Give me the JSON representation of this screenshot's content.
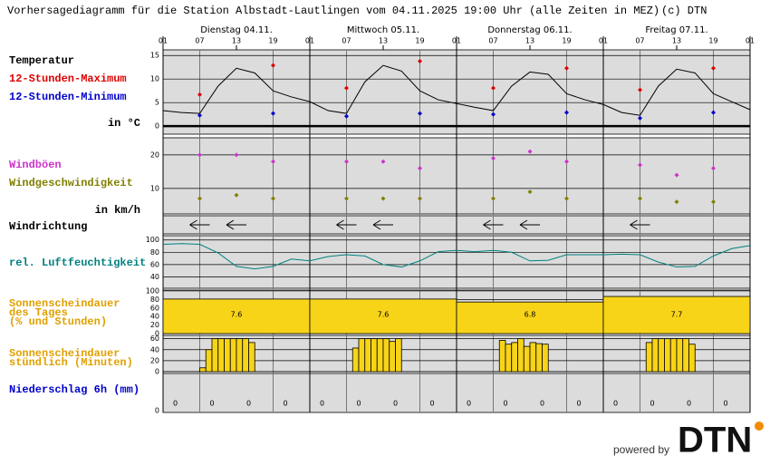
{
  "title": "Vorhersagediagramm für die Station Albstadt-Lautlingen vom 04.11.2025 19:00 Uhr (alle Zeiten in MEZ)",
  "copyright": "(c) DTN",
  "footer": {
    "powered_by": "powered by",
    "logo": "DTN"
  },
  "x_axis": {
    "days": [
      "Dienstag 04.11.",
      "Mittwoch 05.11.",
      "Donnerstag 06.11.",
      "Freitag 07.11."
    ],
    "xlim": [
      0,
      96
    ],
    "xticks": [
      {
        "value": 0,
        "label": "01"
      },
      {
        "value": 6,
        "label": "07"
      },
      {
        "value": 12,
        "label": "13"
      },
      {
        "value": 18,
        "label": "19"
      },
      {
        "value": 24,
        "label": "01"
      },
      {
        "value": 30,
        "label": "07"
      },
      {
        "value": 36,
        "label": "13"
      },
      {
        "value": 42,
        "label": "19"
      },
      {
        "value": 48,
        "label": "01"
      },
      {
        "value": 54,
        "label": "07"
      },
      {
        "value": 60,
        "label": "13"
      },
      {
        "value": 66,
        "label": "19"
      },
      {
        "value": 72,
        "label": "01"
      },
      {
        "value": 78,
        "label": "07"
      },
      {
        "value": 84,
        "label": "13"
      },
      {
        "value": 90,
        "label": "19"
      },
      {
        "value": 96,
        "label": "01"
      }
    ]
  },
  "chart_data": [
    {
      "type": "line",
      "title": "Temperatur",
      "title_color": "#000000",
      "unit": "in °C",
      "ylim": [
        -1.7,
        16.2
      ],
      "yticks": [
        0,
        5,
        10,
        15
      ],
      "grid": true,
      "line": {
        "color": "#000000",
        "x": [
          0,
          3,
          6,
          9,
          12,
          15,
          18,
          21,
          24,
          27,
          30,
          33,
          36,
          39,
          42,
          45,
          48,
          51,
          54,
          57,
          60,
          63,
          66,
          69,
          72,
          75,
          78,
          81,
          84,
          87,
          90,
          93,
          96
        ],
        "values": [
          3.3,
          2.9,
          2.7,
          8.5,
          12.3,
          11.3,
          7.5,
          6.2,
          5.2,
          3.3,
          2.7,
          9.4,
          12.9,
          11.7,
          7.5,
          5.6,
          4.8,
          4.0,
          3.3,
          8.5,
          11.5,
          11.0,
          6.9,
          5.6,
          4.6,
          2.9,
          2.3,
          8.5,
          12.1,
          11.3,
          6.9,
          5.2,
          3.5
        ]
      },
      "series": [
        {
          "name": "12-Stunden-Maximum",
          "color": "#dd0000",
          "x": [
            6,
            18,
            30,
            42,
            54,
            66,
            78,
            90
          ],
          "values": [
            6.7,
            12.9,
            8.1,
            13.8,
            8.1,
            12.3,
            7.7,
            12.3
          ]
        },
        {
          "name": "12-Stunden-Minimum",
          "color": "#0000cc",
          "x": [
            6,
            18,
            30,
            42,
            54,
            66,
            78,
            90
          ],
          "values": [
            2.3,
            2.7,
            2.1,
            2.7,
            2.5,
            2.9,
            1.7,
            2.9
          ]
        }
      ]
    },
    {
      "type": "scatter",
      "unit": "in km/h",
      "ylim": [
        2.4,
        25.1
      ],
      "yticks": [
        10,
        20
      ],
      "grid": true,
      "series": [
        {
          "name": "Windböen",
          "color": "#cc33cc",
          "x": [
            6,
            12,
            18,
            30,
            36,
            42,
            54,
            60,
            66,
            78,
            84,
            90
          ],
          "values": [
            20,
            20,
            18,
            18,
            18,
            16,
            19,
            21,
            18,
            17,
            14,
            16
          ]
        },
        {
          "name": "Windgeschwindigkeit",
          "color": "#808000",
          "x": [
            6,
            12,
            18,
            30,
            36,
            42,
            54,
            60,
            66,
            78,
            84,
            90
          ],
          "values": [
            7,
            8,
            7,
            7,
            7,
            7,
            7,
            9,
            7,
            7,
            6,
            6
          ]
        }
      ]
    },
    {
      "type": "arrows",
      "title": "Windrichtung",
      "title_color": "#000000",
      "x": [
        6,
        12,
        30,
        36,
        54,
        60,
        78
      ]
    },
    {
      "type": "line",
      "title": "rel. Luftfeuchtigkeit",
      "title_color": "#008080",
      "ylim": [
        21.4,
        107
      ],
      "yticks": [
        40,
        60,
        80,
        100
      ],
      "grid": true,
      "line": {
        "color": "#008080",
        "x": [
          0,
          3,
          6,
          9,
          12,
          15,
          18,
          21,
          24,
          27,
          30,
          33,
          36,
          39,
          42,
          45,
          48,
          51,
          54,
          57,
          60,
          63,
          66,
          69,
          72,
          75,
          78,
          81,
          84,
          87,
          90,
          93,
          96
        ],
        "values": [
          93,
          94,
          93,
          79,
          57,
          53,
          57,
          69,
          66,
          73,
          76,
          74,
          60,
          56,
          66,
          81,
          83,
          81,
          83,
          80,
          66,
          67,
          76,
          76,
          76,
          77,
          76,
          64,
          56,
          57,
          74,
          86,
          91
        ]
      }
    },
    {
      "type": "bar",
      "title": [
        "Sonnenscheindauer",
        "des Tages",
        "(% und Stunden)"
      ],
      "title_color": "#e0a000",
      "ylim": [
        0,
        102
      ],
      "yticks": [
        0,
        20,
        40,
        60,
        80,
        100
      ],
      "grid": true,
      "color": "#f8d418",
      "values": [
        81,
        81,
        74,
        87
      ],
      "hours": [
        7.6,
        7.6,
        6.8,
        7.7
      ]
    },
    {
      "type": "hourly_bar",
      "title": [
        "Sonnenscheindauer",
        "stündlich (Minuten)"
      ],
      "title_color": "#e0a000",
      "ylim": [
        0,
        66
      ],
      "yticks": [
        0,
        20,
        40,
        60
      ],
      "grid": true,
      "color": "#f8d418",
      "x": [
        6,
        7,
        8,
        9,
        10,
        11,
        12,
        13,
        14,
        31,
        32,
        33,
        34,
        35,
        36,
        37,
        38,
        55,
        56,
        57,
        58,
        59,
        60,
        61,
        62,
        79,
        80,
        81,
        82,
        83,
        84,
        85,
        86
      ],
      "values": [
        7,
        40,
        60,
        60,
        60,
        60,
        60,
        60,
        53,
        43,
        60,
        60,
        60,
        60,
        60,
        55,
        60,
        57,
        50,
        53,
        60,
        46,
        53,
        51,
        50,
        53,
        60,
        60,
        60,
        60,
        60,
        60,
        50
      ]
    },
    {
      "type": "text",
      "title": "Niederschlag 6h (mm)",
      "title_color": "#0000cc",
      "yticks": [
        0
      ],
      "x": [
        2,
        8,
        14,
        20,
        26,
        32,
        38,
        44,
        50,
        56,
        62,
        68,
        74,
        80,
        86,
        92
      ],
      "values": [
        0,
        0,
        0,
        0,
        0,
        0,
        0,
        0,
        0,
        0,
        0,
        0,
        0,
        0,
        0,
        0
      ]
    }
  ]
}
